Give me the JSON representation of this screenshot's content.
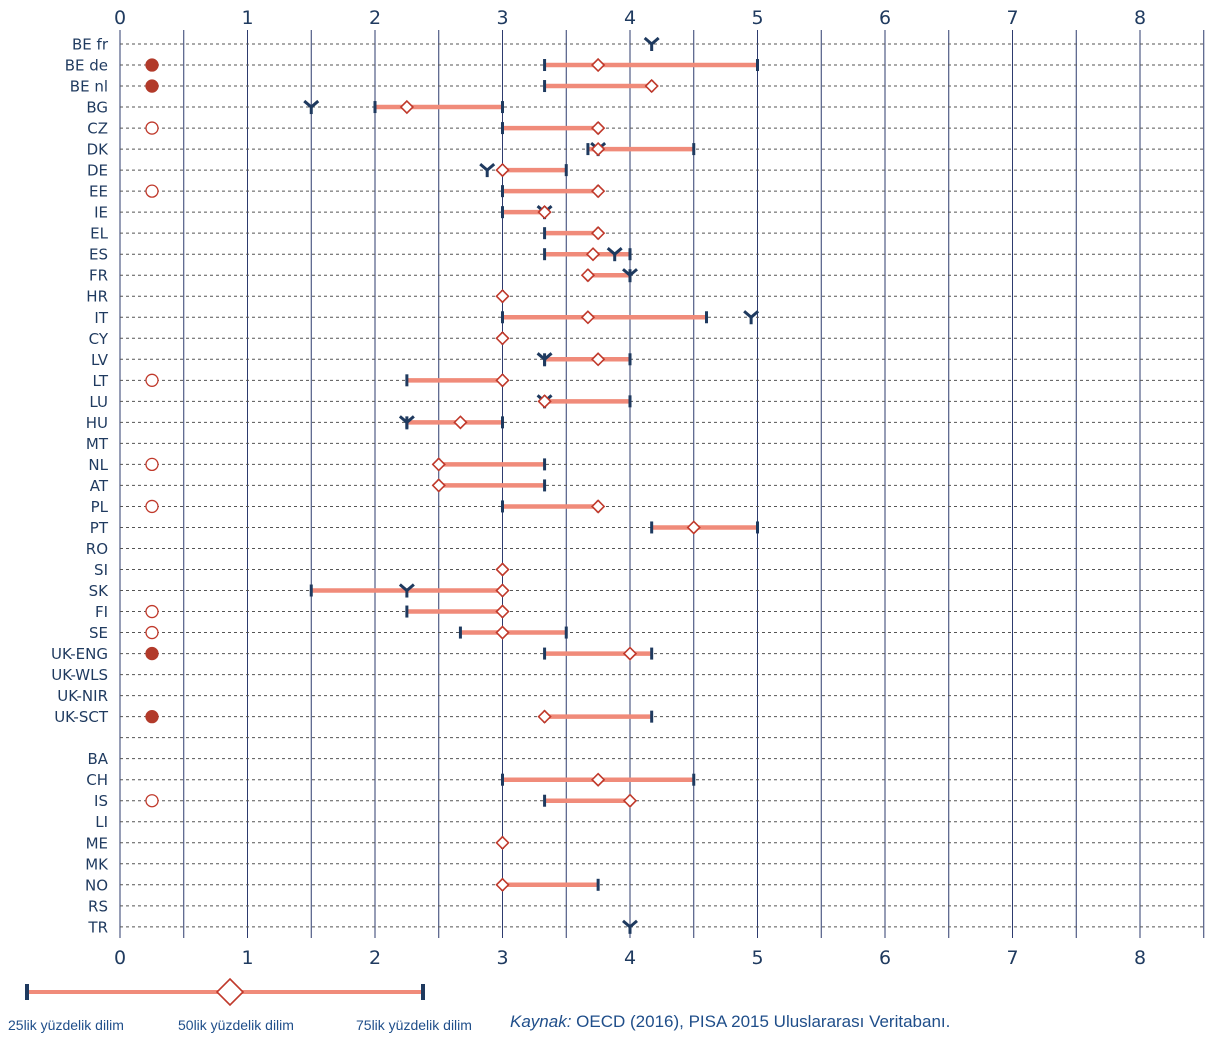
{
  "chart_data": {
    "type": "range",
    "xlim": [
      0,
      8.5
    ],
    "x_ticks": [
      "0",
      "1",
      "2",
      "3",
      "4",
      "5",
      "6",
      "7",
      "8"
    ],
    "legend": {
      "p25_label": "25lik yüzdelik dilim",
      "p50_label": "50lik yüzdelik dilim",
      "p75_label": "75lik yüzdelik dilim"
    },
    "source_prefix": "Kaynak:",
    "source_text": "OECD (2016), PISA 2015 Uluslararası Veritabanı.",
    "colors": {
      "range_bar": "#f08b7a",
      "cap": "#1f3a5f",
      "median_marker": "#c0392b",
      "filled_circle": "#b23a2a",
      "gridline": "#2e3b6e"
    },
    "rows": [
      {
        "label": "BE fr",
        "p25": null,
        "p50": null,
        "p75": null,
        "pisa": 4.17,
        "circle": null
      },
      {
        "label": "BE de",
        "p25": 3.33,
        "p50": 3.75,
        "p75": 5.0,
        "pisa": null,
        "circle": "filled"
      },
      {
        "label": "BE nl",
        "p25": 3.33,
        "p50": 4.17,
        "p75": 4.17,
        "pisa": null,
        "circle": "filled"
      },
      {
        "label": "BG",
        "p25": 2.0,
        "p50": 2.25,
        "p75": 3.0,
        "pisa": 1.5,
        "circle": null
      },
      {
        "label": "CZ",
        "p25": 3.0,
        "p50": 3.75,
        "p75": 3.75,
        "pisa": null,
        "circle": "open"
      },
      {
        "label": "DK",
        "p25": 3.67,
        "p50": 3.75,
        "p75": 4.5,
        "pisa": 3.75,
        "circle": null
      },
      {
        "label": "DE",
        "p25": 3.0,
        "p50": 3.0,
        "p75": 3.5,
        "pisa": 2.88,
        "circle": null
      },
      {
        "label": "EE",
        "p25": 3.0,
        "p50": 3.75,
        "p75": 3.75,
        "pisa": null,
        "circle": "open"
      },
      {
        "label": "IE",
        "p25": 3.0,
        "p50": 3.33,
        "p75": 3.33,
        "pisa": 3.33,
        "circle": null
      },
      {
        "label": "EL",
        "p25": 3.33,
        "p50": 3.75,
        "p75": 3.75,
        "pisa": null,
        "circle": null
      },
      {
        "label": "ES",
        "p25": 3.33,
        "p50": 3.71,
        "p75": 4.0,
        "pisa": 3.88,
        "circle": null
      },
      {
        "label": "FR",
        "p25": 3.67,
        "p50": 3.67,
        "p75": 4.0,
        "pisa": 4.0,
        "circle": null
      },
      {
        "label": "HR",
        "p25": 3.0,
        "p50": 3.0,
        "p75": 3.0,
        "pisa": null,
        "circle": null
      },
      {
        "label": "IT",
        "p25": 3.0,
        "p50": 3.67,
        "p75": 4.6,
        "pisa": 4.95,
        "circle": null
      },
      {
        "label": "CY",
        "p25": 3.0,
        "p50": 3.0,
        "p75": 3.0,
        "pisa": null,
        "circle": null
      },
      {
        "label": "LV",
        "p25": 3.33,
        "p50": 3.75,
        "p75": 4.0,
        "pisa": 3.33,
        "circle": null
      },
      {
        "label": "LT",
        "p25": 2.25,
        "p50": 3.0,
        "p75": 3.0,
        "pisa": null,
        "circle": "open"
      },
      {
        "label": "LU",
        "p25": 3.33,
        "p50": 3.33,
        "p75": 4.0,
        "pisa": 3.33,
        "circle": null
      },
      {
        "label": "HU",
        "p25": 2.25,
        "p50": 2.67,
        "p75": 3.0,
        "pisa": 2.25,
        "circle": null
      },
      {
        "label": "MT",
        "p25": null,
        "p50": null,
        "p75": null,
        "pisa": null,
        "circle": null
      },
      {
        "label": "NL",
        "p25": 2.5,
        "p50": 2.5,
        "p75": 3.33,
        "pisa": null,
        "circle": "open"
      },
      {
        "label": "AT",
        "p25": 2.5,
        "p50": 2.5,
        "p75": 3.33,
        "pisa": null,
        "circle": null
      },
      {
        "label": "PL",
        "p25": 3.0,
        "p50": 3.75,
        "p75": 3.75,
        "pisa": null,
        "circle": "open"
      },
      {
        "label": "PT",
        "p25": 4.17,
        "p50": 4.5,
        "p75": 5.0,
        "pisa": null,
        "circle": null
      },
      {
        "label": "RO",
        "p25": null,
        "p50": null,
        "p75": null,
        "pisa": null,
        "circle": null
      },
      {
        "label": "SI",
        "p25": 3.0,
        "p50": 3.0,
        "p75": 3.0,
        "pisa": null,
        "circle": null
      },
      {
        "label": "SK",
        "p25": 1.5,
        "p50": 3.0,
        "p75": 3.0,
        "pisa": 2.25,
        "circle": null
      },
      {
        "label": "FI",
        "p25": 2.25,
        "p50": 3.0,
        "p75": 3.0,
        "pisa": null,
        "circle": "open"
      },
      {
        "label": "SE",
        "p25": 2.67,
        "p50": 3.0,
        "p75": 3.5,
        "pisa": null,
        "circle": "open"
      },
      {
        "label": "UK-ENG",
        "p25": 3.33,
        "p50": 4.0,
        "p75": 4.17,
        "pisa": null,
        "circle": "filled"
      },
      {
        "label": "UK-WLS",
        "p25": null,
        "p50": null,
        "p75": null,
        "pisa": null,
        "circle": null
      },
      {
        "label": "UK-NIR",
        "p25": null,
        "p50": null,
        "p75": null,
        "pisa": null,
        "circle": null
      },
      {
        "label": "UK-SCT",
        "p25": 3.33,
        "p50": 3.33,
        "p75": 4.17,
        "pisa": null,
        "circle": "filled"
      },
      {
        "label": "",
        "p25": null,
        "p50": null,
        "p75": null,
        "pisa": null,
        "circle": null
      },
      {
        "label": "BA",
        "p25": null,
        "p50": null,
        "p75": null,
        "pisa": null,
        "circle": null
      },
      {
        "label": "CH",
        "p25": 3.0,
        "p50": 3.75,
        "p75": 4.5,
        "pisa": null,
        "circle": null
      },
      {
        "label": "IS",
        "p25": 3.33,
        "p50": 4.0,
        "p75": 4.0,
        "pisa": null,
        "circle": "open"
      },
      {
        "label": "LI",
        "p25": null,
        "p50": null,
        "p75": null,
        "pisa": null,
        "circle": null
      },
      {
        "label": "ME",
        "p25": 3.0,
        "p50": 3.0,
        "p75": 3.0,
        "pisa": null,
        "circle": null
      },
      {
        "label": "MK",
        "p25": null,
        "p50": null,
        "p75": null,
        "pisa": null,
        "circle": null
      },
      {
        "label": "NO",
        "p25": 3.0,
        "p50": 3.0,
        "p75": 3.75,
        "pisa": null,
        "circle": null
      },
      {
        "label": "RS",
        "p25": null,
        "p50": null,
        "p75": null,
        "pisa": null,
        "circle": null
      },
      {
        "label": "TR",
        "p25": null,
        "p50": null,
        "p75": null,
        "pisa": 4.0,
        "circle": null
      }
    ]
  }
}
